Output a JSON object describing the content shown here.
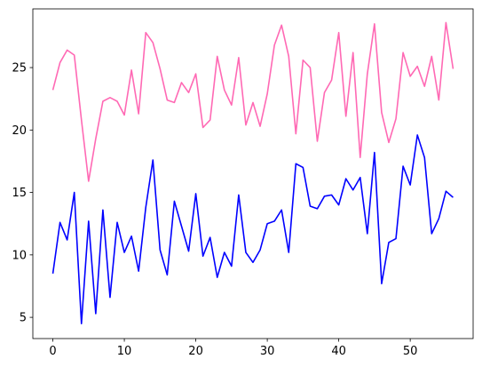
{
  "chart_data": {
    "type": "line",
    "title": "",
    "xlabel": "",
    "ylabel": "",
    "xlim": [
      -2.8,
      58.8
    ],
    "ylim": [
      3.3,
      29.7
    ],
    "xticks": [
      0,
      10,
      20,
      30,
      40,
      50
    ],
    "yticks": [
      5,
      10,
      15,
      20,
      25
    ],
    "grid": false,
    "legend": "none",
    "x": [
      0,
      1,
      2,
      3,
      4,
      5,
      6,
      7,
      8,
      9,
      10,
      11,
      12,
      13,
      14,
      15,
      16,
      17,
      18,
      19,
      20,
      21,
      22,
      23,
      24,
      25,
      26,
      27,
      28,
      29,
      30,
      31,
      32,
      33,
      34,
      35,
      36,
      37,
      38,
      39,
      40,
      41,
      42,
      43,
      44,
      45,
      46,
      47,
      48,
      49,
      50,
      51,
      52,
      53,
      54,
      55,
      56
    ],
    "series": [
      {
        "color": "#ff69b4",
        "values": [
          23.2,
          25.4,
          26.4,
          26.0,
          20.8,
          15.9,
          19.3,
          22.3,
          22.6,
          22.3,
          21.2,
          24.8,
          21.3,
          27.8,
          27.0,
          24.9,
          22.4,
          22.2,
          23.8,
          23.0,
          24.5,
          20.2,
          20.8,
          25.9,
          23.2,
          22.0,
          25.8,
          20.4,
          22.2,
          20.3,
          22.9,
          26.8,
          28.4,
          25.9,
          19.7,
          25.6,
          25.0,
          19.1,
          23.0,
          24.0,
          27.8,
          21.1,
          26.2,
          17.8,
          24.5,
          28.5,
          21.4,
          19.0,
          20.9,
          26.2,
          24.3,
          25.1,
          23.5,
          25.9,
          22.4,
          28.6,
          24.9
        ]
      },
      {
        "color": "#0000ff",
        "values": [
          8.5,
          12.6,
          11.2,
          15.0,
          4.5,
          12.7,
          5.3,
          13.6,
          6.6,
          12.6,
          10.2,
          11.5,
          8.7,
          13.8,
          17.6,
          10.4,
          8.4,
          14.3,
          12.3,
          10.3,
          14.9,
          9.9,
          11.4,
          8.2,
          10.2,
          9.1,
          14.8,
          10.2,
          9.4,
          10.4,
          12.5,
          12.7,
          13.6,
          10.2,
          17.3,
          17.0,
          13.9,
          13.7,
          14.7,
          14.8,
          14.0,
          16.1,
          15.2,
          16.2,
          11.7,
          18.2,
          7.7,
          11.0,
          11.3,
          17.1,
          15.6,
          19.6,
          17.8,
          11.7,
          12.9,
          15.1,
          14.6
        ]
      }
    ]
  }
}
